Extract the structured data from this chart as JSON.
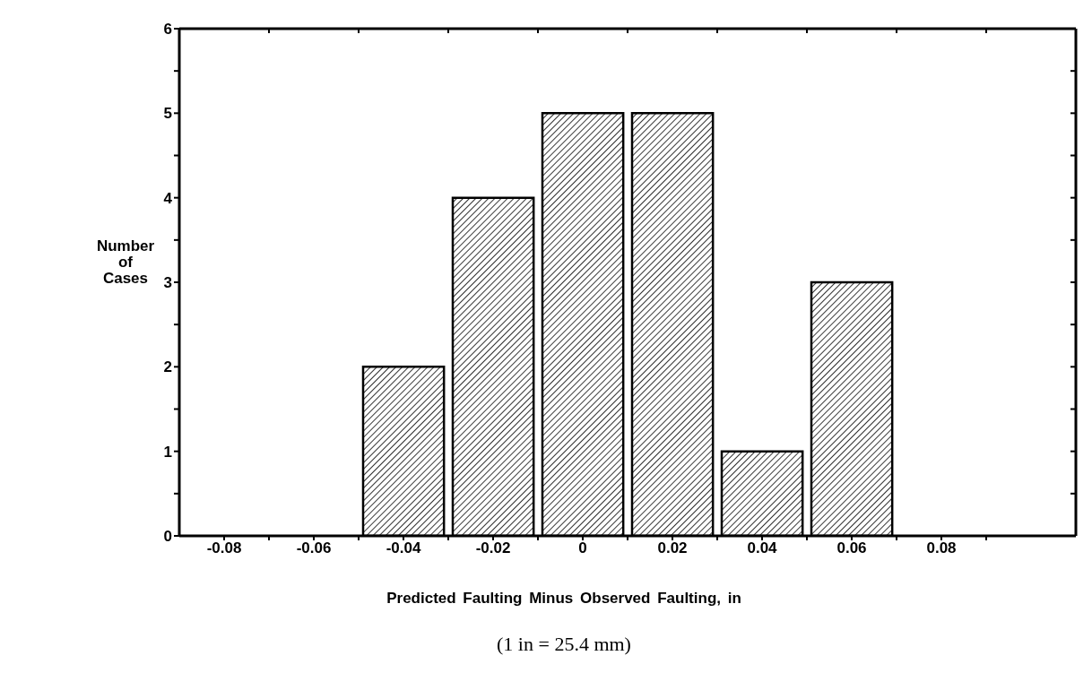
{
  "chart_data": {
    "type": "histogram",
    "xlabel": "Predicted Faulting Minus Observed Faulting, in",
    "ylabel": "Number of Cases",
    "annotations": [
      "(1 in = 25.4 mm)"
    ],
    "bins": [
      -0.09,
      -0.07,
      -0.05,
      -0.03,
      -0.01,
      0.01,
      0.03,
      0.05,
      0.07,
      0.09
    ],
    "values": [
      0,
      0,
      2,
      4,
      5,
      5,
      1,
      3,
      0
    ],
    "color": "#000000",
    "xlim": [
      -0.09,
      0.11
    ],
    "xticks": [
      {
        "value": -0.08,
        "label": "-0.08"
      },
      {
        "value": -0.06,
        "label": "-0.06"
      },
      {
        "value": -0.04,
        "label": "-0.04"
      },
      {
        "value": -0.02,
        "label": "-0.02"
      },
      0,
      0.02,
      0.04,
      0.06,
      0.08,
      {
        "value": -0.07,
        "label": null
      },
      {
        "value": -0.05,
        "label": null
      },
      {
        "value": -0.03,
        "label": null
      },
      {
        "value": -0.01,
        "label": null
      },
      {
        "value": 0.01,
        "label": null
      },
      {
        "value": 0.03,
        "label": null
      },
      {
        "value": 0.05,
        "label": null
      },
      {
        "value": 0.07,
        "label": null
      },
      {
        "value": 0.09,
        "label": null
      }
    ],
    "ylim": [
      0,
      6
    ],
    "grid": false,
    "legend": false,
    "yticks": [
      0,
      1,
      2,
      3,
      4,
      5,
      6,
      {
        "value": 0.5,
        "label": null
      },
      {
        "value": 1.5,
        "label": null
      },
      {
        "value": 2.5,
        "label": null
      },
      {
        "value": 3.5,
        "label": null
      },
      {
        "value": 4.5,
        "label": null
      },
      {
        "value": 5.5,
        "label": null
      }
    ]
  }
}
